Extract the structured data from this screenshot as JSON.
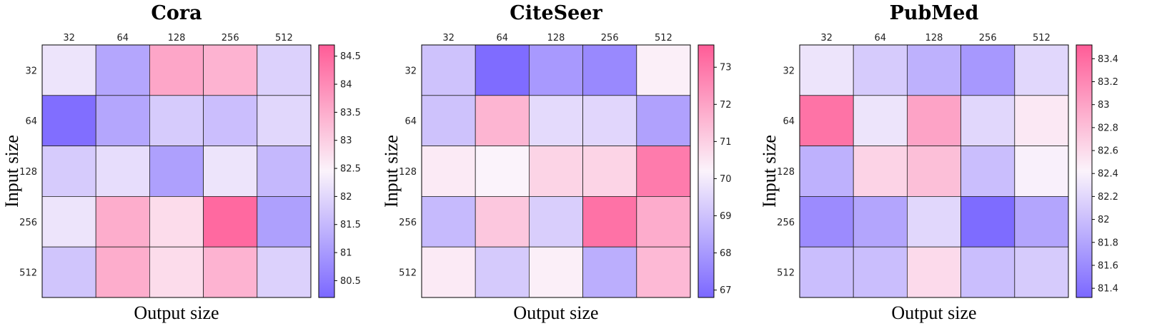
{
  "chart_data": [
    {
      "type": "heatmap",
      "title": "Cora",
      "xlabel": "Output size",
      "ylabel": "Input size",
      "x_categories": [
        "32",
        "64",
        "128",
        "256",
        "512"
      ],
      "y_categories": [
        "32",
        "64",
        "128",
        "256",
        "512"
      ],
      "values": [
        [
          82.2,
          81.2,
          83.6,
          83.4,
          81.9
        ],
        [
          80.3,
          81.2,
          81.8,
          81.6,
          82.0
        ],
        [
          81.8,
          82.1,
          81.1,
          82.2,
          81.5
        ],
        [
          82.2,
          83.5,
          82.8,
          84.5,
          81.1
        ],
        [
          81.7,
          83.5,
          82.8,
          83.4,
          81.9
        ]
      ],
      "colorbar": {
        "min": 80.2,
        "max": 84.7,
        "ticks": [
          80.5,
          81,
          81.5,
          82,
          82.5,
          83,
          83.5,
          84,
          84.5
        ],
        "tick_labels": [
          "80.5",
          "81",
          "81.5",
          "82",
          "82.5",
          "83",
          "83.5",
          "84",
          "84.5"
        ]
      }
    },
    {
      "type": "heatmap",
      "title": "CiteSeer",
      "xlabel": "Output size",
      "ylabel": "Input size",
      "x_categories": [
        "32",
        "64",
        "128",
        "256",
        "512"
      ],
      "y_categories": [
        "32",
        "64",
        "128",
        "256",
        "512"
      ],
      "values": [
        [
          69.0,
          66.9,
          68.0,
          67.6,
          70.3
        ],
        [
          69.0,
          71.6,
          69.6,
          69.5,
          68.2
        ],
        [
          70.4,
          70.2,
          70.9,
          70.9,
          72.9
        ],
        [
          68.8,
          71.2,
          69.3,
          73.1,
          71.8
        ],
        [
          70.4,
          69.2,
          70.3,
          68.5,
          71.5
        ]
      ],
      "colorbar": {
        "min": 66.8,
        "max": 73.6,
        "ticks": [
          67,
          68,
          69,
          70,
          71,
          72,
          73
        ],
        "tick_labels": [
          "67",
          "68",
          "69",
          "70",
          "71",
          "72",
          "73"
        ]
      }
    },
    {
      "type": "heatmap",
      "title": "PubMed",
      "xlabel": "Output size",
      "ylabel": "Input size",
      "x_categories": [
        "32",
        "64",
        "128",
        "256",
        "512"
      ],
      "y_categories": [
        "32",
        "64",
        "128",
        "256",
        "512"
      ],
      "values": [
        [
          82.3,
          82.1,
          81.9,
          81.7,
          82.2
        ],
        [
          83.35,
          82.3,
          83.0,
          82.2,
          82.5
        ],
        [
          81.9,
          82.65,
          82.8,
          82.0,
          82.4
        ],
        [
          81.6,
          81.8,
          82.2,
          81.35,
          81.8
        ],
        [
          82.0,
          82.0,
          82.6,
          82.0,
          82.1
        ]
      ],
      "colorbar": {
        "min": 81.32,
        "max": 83.52,
        "ticks": [
          81.4,
          81.6,
          81.8,
          82,
          82.2,
          82.4,
          82.6,
          82.8,
          83,
          83.2,
          83.4
        ],
        "tick_labels": [
          "81.4",
          "81.6",
          "81.8",
          "82",
          "82.2",
          "82.4",
          "82.6",
          "82.8",
          "83",
          "83.2",
          "83.4"
        ]
      }
    }
  ],
  "colormap": {
    "low": "#7b68ff",
    "mid": "#fbf3fb",
    "high": "#ff5c97"
  }
}
